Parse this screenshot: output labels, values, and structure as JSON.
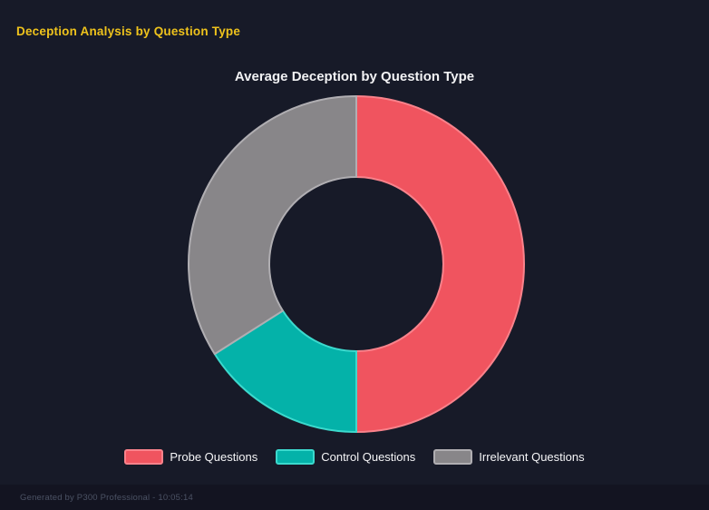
{
  "header": {
    "title": "Deception Analysis by Question Type",
    "color": "#efc31c"
  },
  "chart_data": {
    "type": "doughnut",
    "title": "Average Deception by Question Type",
    "labels": [
      "Probe Questions",
      "Control Questions",
      "Irrelevant Questions"
    ],
    "values": [
      50,
      16,
      34
    ],
    "values_unit": "percent_of_ring",
    "colors": [
      "#f0545f",
      "#04b2a9",
      "#888689"
    ],
    "border_colors": [
      "#f9828b",
      "#3cd9cd",
      "#b0aeb2"
    ],
    "background": "#171a28",
    "legend_position": "bottom",
    "start_angle_deg": 0,
    "rotation": "clockwise",
    "cutout_ratio": 0.52
  },
  "footer": {
    "text": "Generated by P300 Professional - 10:05:14"
  }
}
